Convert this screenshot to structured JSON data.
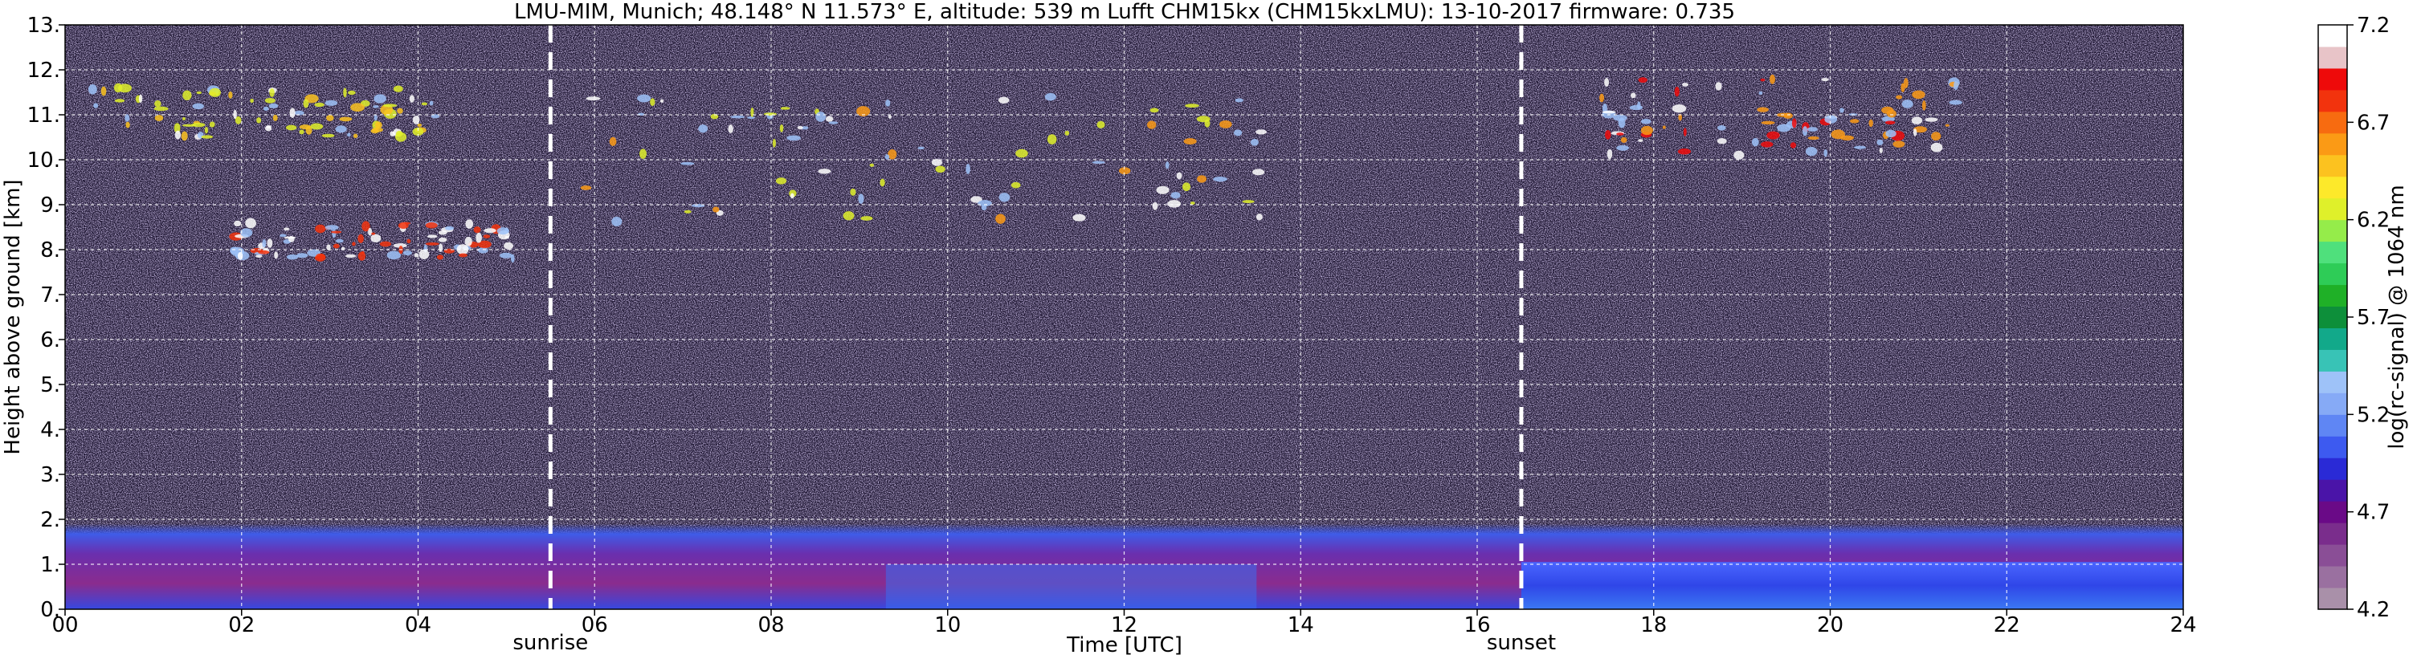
{
  "chart_data": {
    "type": "heatmap",
    "title": "LMU-MIM, Munich; 48.148° N 11.573° E, altitude: 539 m    Lufft CHM15kx (CHM15kxLMU): 13-10-2017    firmware: 0.735",
    "xlabel": "Time [UTC]",
    "ylabel": "Height above ground [km]",
    "xlim": [
      0,
      24
    ],
    "ylim": [
      0,
      13
    ],
    "x_ticks": [
      "00",
      "02",
      "04",
      "06",
      "08",
      "10",
      "12",
      "14",
      "16",
      "18",
      "20",
      "22",
      "24"
    ],
    "x_tick_values": [
      0,
      2,
      4,
      6,
      8,
      10,
      12,
      14,
      16,
      18,
      20,
      22,
      24
    ],
    "y_ticks": [
      "0.",
      "1.",
      "2.",
      "3.",
      "4.",
      "5.",
      "6.",
      "7.",
      "8.",
      "9.",
      "10.",
      "11.",
      "12.",
      "13."
    ],
    "y_tick_values": [
      0,
      1,
      2,
      3,
      4,
      5,
      6,
      7,
      8,
      9,
      10,
      11,
      12,
      13
    ],
    "grid": true,
    "annotations": [
      {
        "label": "sunrise",
        "x": 5.5
      },
      {
        "label": "sunset",
        "x": 16.5
      }
    ],
    "colorbar": {
      "label": "log(rc-signal) @ 1064 nm",
      "range": [
        4.2,
        7.2
      ],
      "ticks": [
        "4.2",
        "4.7",
        "5.2",
        "5.7",
        "6.2",
        "6.7",
        "7.2"
      ],
      "tick_values": [
        4.2,
        4.7,
        5.2,
        5.7,
        6.2,
        6.7,
        7.2
      ],
      "colors": [
        "#a990a9",
        "#9a70a0",
        "#8a4e96",
        "#7a2d8c",
        "#6a0a87",
        "#4a14a8",
        "#2a2ad6",
        "#3d5af0",
        "#5f86f4",
        "#86aaf6",
        "#9ec2f8",
        "#38c3b6",
        "#12a98a",
        "#0d8f3a",
        "#1fb027",
        "#2ecc57",
        "#4fe07c",
        "#95ec4a",
        "#dff02a",
        "#fde92a",
        "#fcc21f",
        "#fb9a15",
        "#f76b10",
        "#f2330d",
        "#ee0a0a",
        "#e8c4c8",
        "#ffffff"
      ]
    },
    "features": [
      {
        "type": "aerosol_layer",
        "x_range": [
          0,
          24
        ],
        "y_range": [
          0.0,
          1.9
        ],
        "value": 5.0
      },
      {
        "type": "cirrus",
        "x_range": [
          1.9,
          5.1
        ],
        "y_range": [
          7.8,
          8.6
        ],
        "value": 6.8
      },
      {
        "type": "cirrus",
        "x_range": [
          0.3,
          4.2
        ],
        "y_range": [
          10.5,
          11.6
        ],
        "value": 6.2
      },
      {
        "type": "cirrus",
        "x_range": [
          5.9,
          13.8
        ],
        "y_range": [
          8.6,
          11.4
        ],
        "value": 6.3
      },
      {
        "type": "cirrus",
        "x_range": [
          17.4,
          21.5
        ],
        "y_range": [
          10.1,
          11.8
        ],
        "value": 6.6
      }
    ]
  }
}
